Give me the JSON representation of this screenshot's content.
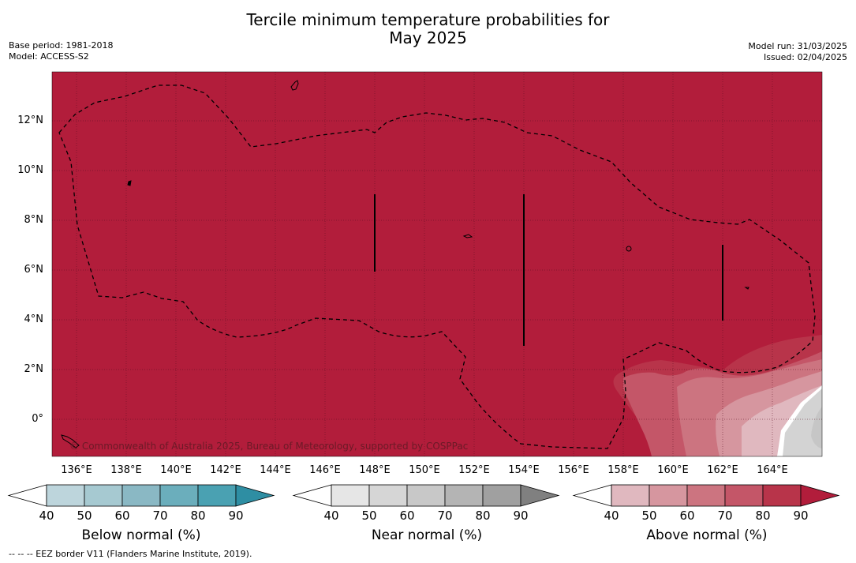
{
  "header": {
    "title_line1": "Tercile minimum temperature probabilities for",
    "title_line2": "May 2025",
    "base_period": "Base period: 1981-2018",
    "model": "Model: ACCESS-S2",
    "model_run": "Model run: 31/03/2025",
    "issued": "Issued: 02/04/2025"
  },
  "map": {
    "lat_labels": [
      "12°N",
      "10°N",
      "8°N",
      "6°N",
      "4°N",
      "2°N",
      "0°"
    ],
    "lon_labels": [
      "136°E",
      "138°E",
      "140°E",
      "142°E",
      "144°E",
      "146°E",
      "148°E",
      "150°E",
      "152°E",
      "154°E",
      "156°E",
      "158°E",
      "160°E",
      "162°E",
      "164°E"
    ],
    "copyright": "© Commonwealth of Australia 2025, Bureau of Meteorology, supported by COSPPac",
    "dominant_category": "Above normal",
    "dominant_probability_percent": 90
  },
  "colorbars": [
    {
      "title": "Below normal (%)",
      "ticks": [
        "40",
        "50",
        "60",
        "70",
        "80",
        "90"
      ],
      "colors": [
        "#ffffff",
        "#bdd5dc",
        "#a6c9d1",
        "#8ab8c4",
        "#6baebc",
        "#4aa1b2",
        "#2e8ea3"
      ]
    },
    {
      "title": "Near normal (%)",
      "ticks": [
        "40",
        "50",
        "60",
        "70",
        "80",
        "90"
      ],
      "colors": [
        "#ffffff",
        "#e6e6e6",
        "#d6d6d6",
        "#c8c8c8",
        "#b4b4b4",
        "#a0a0a0",
        "#808080"
      ]
    },
    {
      "title": "Above normal (%)",
      "ticks": [
        "40",
        "50",
        "60",
        "70",
        "80",
        "90"
      ],
      "colors": [
        "#ffffff",
        "#e0b8bf",
        "#d6969f",
        "#cc7480",
        "#c45668",
        "#b8344a",
        "#b21d3b"
      ]
    }
  ],
  "footnote": "--  --  -- EEZ border V11 (Flanders Marine Institute, 2019)."
}
